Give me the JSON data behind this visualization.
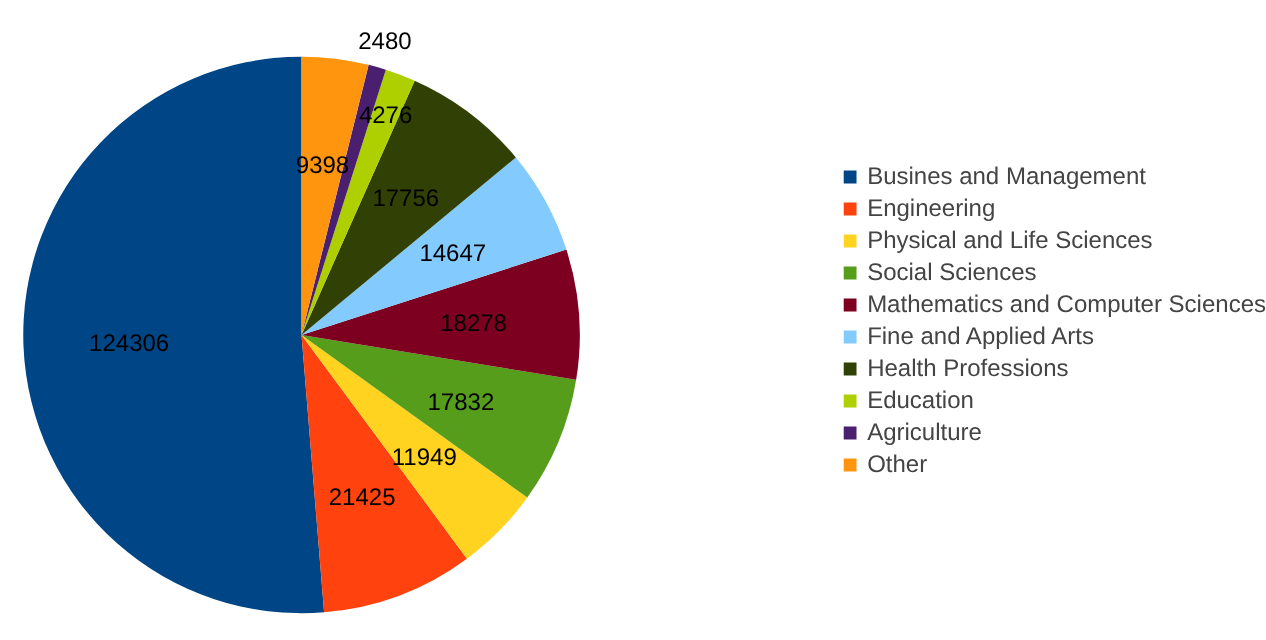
{
  "chart_data": {
    "type": "pie",
    "categories": [
      "Busines and Management",
      "Engineering",
      "Physical and Life Sciences",
      "Social Sciences",
      "Mathematics and Computer Sciences",
      "Fine and Applied Arts",
      "Health Professions",
      "Education",
      "Agriculture",
      "Other"
    ],
    "values": [
      124306,
      21425,
      11949,
      17832,
      18278,
      14647,
      17756,
      4276,
      2480,
      9398
    ],
    "colors": [
      "#004586",
      "#ff420e",
      "#ffd320",
      "#579d1c",
      "#7e0021",
      "#83caff",
      "#314004",
      "#aecf00",
      "#4b1f6f",
      "#ff950e"
    ],
    "data_labels": true,
    "legend": "right"
  }
}
